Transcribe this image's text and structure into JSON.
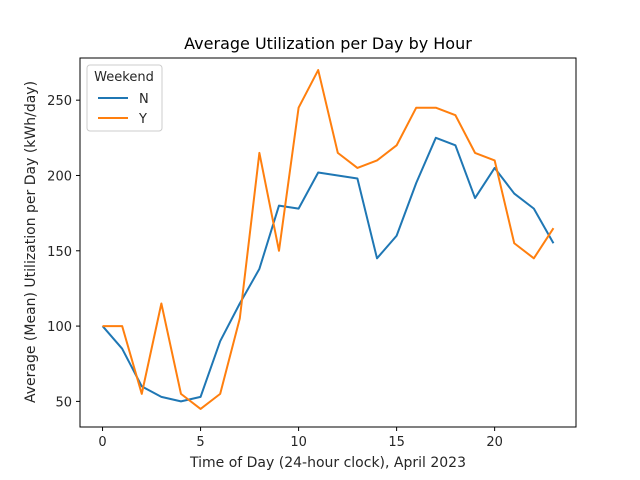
{
  "chart_data": {
    "type": "line",
    "title": "Average Utilization per Day by Hour",
    "xlabel": "Time of Day (24-hour clock), April 2023",
    "ylabel": "Average (Mean) Utilization per Day (kWh/day)",
    "xlim": [
      -1.15,
      24.15
    ],
    "ylim": [
      33,
      278
    ],
    "xticks": [
      0,
      5,
      10,
      15,
      20
    ],
    "yticks": [
      50,
      100,
      150,
      200,
      250
    ],
    "grid": false,
    "legend": {
      "title": "Weekend",
      "placement": "top-left"
    },
    "x": [
      0,
      1,
      2,
      3,
      4,
      5,
      6,
      7,
      8,
      9,
      10,
      11,
      12,
      13,
      14,
      15,
      16,
      17,
      18,
      19,
      20,
      21,
      22,
      23
    ],
    "series": [
      {
        "name": "N",
        "color": "#1f77b4",
        "values": [
          100,
          85,
          60,
          53,
          50,
          53,
          90,
          115,
          138,
          180,
          178,
          202,
          200,
          198,
          145,
          160,
          195,
          225,
          220,
          185,
          205,
          188,
          178,
          155
        ]
      },
      {
        "name": "Y",
        "color": "#ff7f0e",
        "values": [
          100,
          100,
          55,
          115,
          55,
          45,
          55,
          105,
          215,
          150,
          245,
          270,
          215,
          205,
          210,
          220,
          245,
          245,
          240,
          215,
          210,
          155,
          145,
          165
        ]
      }
    ]
  }
}
